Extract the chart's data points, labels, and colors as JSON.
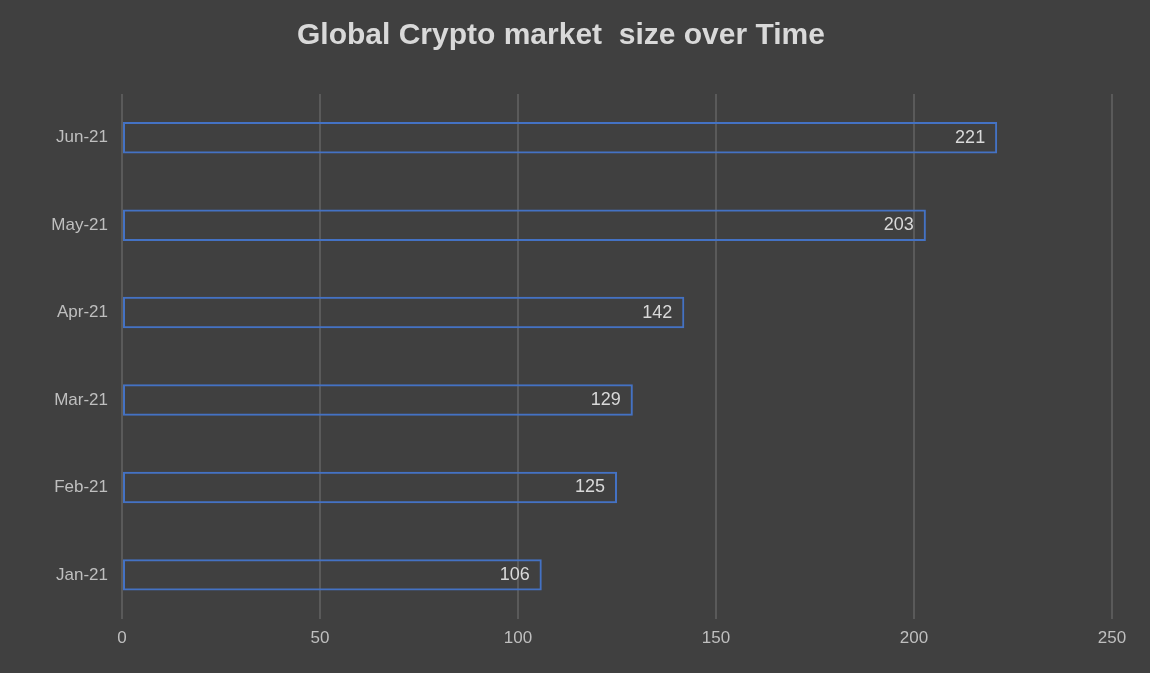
{
  "chart_data": {
    "type": "bar",
    "orientation": "horizontal",
    "title": "Global Crypto market  size over Time",
    "categories": [
      "Jun-21",
      "May-21",
      "Apr-21",
      "Mar-21",
      "Feb-21",
      "Jan-21"
    ],
    "values": [
      221,
      203,
      142,
      129,
      125,
      106
    ],
    "color": "#4472c4",
    "xlim": [
      0,
      250
    ],
    "xticks": [
      0,
      50,
      100,
      150,
      200,
      250
    ],
    "grid": "x",
    "data_labels": true
  }
}
